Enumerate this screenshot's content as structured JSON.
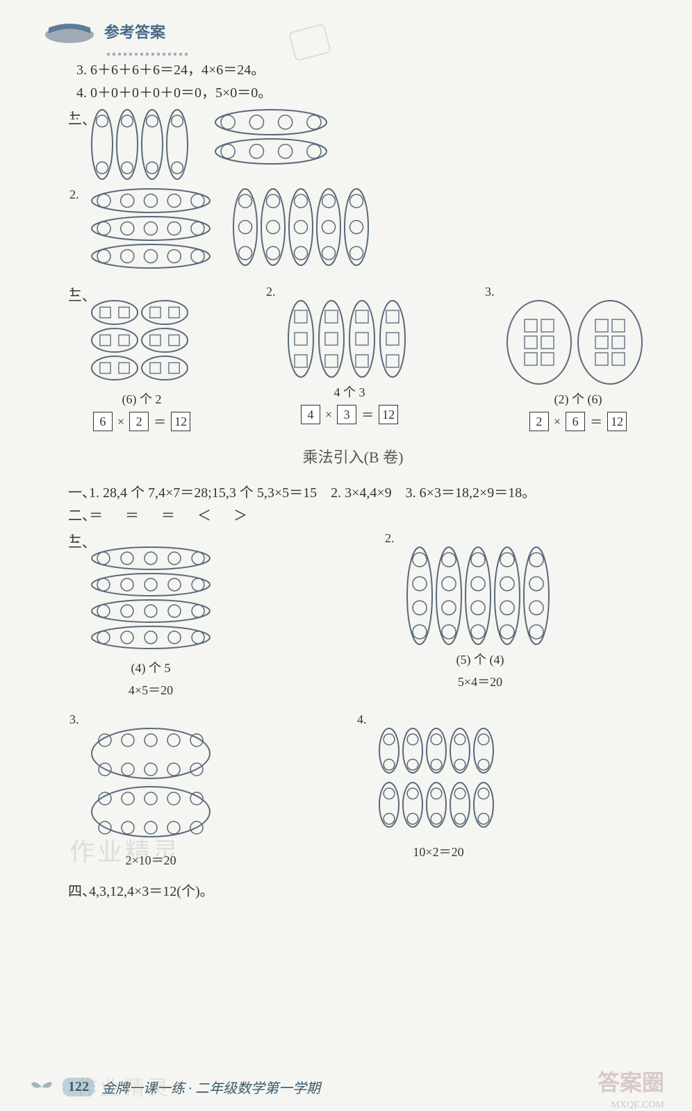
{
  "header": {
    "title": "参考答案"
  },
  "top_lines": {
    "l3": "3. 6＋6＋6＋6＝24，4×6＝24。",
    "l4": "4. 0＋0＋0＋0＋0＝0，5×0＝0。"
  },
  "sec2": {
    "label": "二、",
    "p1": "1.",
    "p2": "2."
  },
  "sec2_figs": {
    "fig1a": {
      "type": "v-ovals",
      "count": 4,
      "dots": 2,
      "ovalW": 30,
      "ovalH": 100,
      "color": "#5a6a7a"
    },
    "fig1b": {
      "type": "h-ovals",
      "count": 2,
      "dots": 4,
      "ovalW": 160,
      "ovalH": 36,
      "color": "#5a6a7a"
    },
    "fig2a": {
      "type": "h-ovals",
      "count": 3,
      "dots": 5,
      "ovalW": 170,
      "ovalH": 34,
      "color": "#5a6a7a"
    },
    "fig2b": {
      "type": "v-ovals",
      "count": 5,
      "dots": 3,
      "ovalW": 34,
      "ovalH": 110,
      "color": "#5a6a7a"
    }
  },
  "sec3": {
    "label": "三、",
    "problems": [
      {
        "num": "1.",
        "fig": {
          "type": "grid-ovals",
          "rows": 3,
          "cols": 2,
          "squares": 2,
          "ovalW": 66,
          "ovalH": 34
        },
        "cap": "(6) 个 2",
        "eq": {
          "a": "6",
          "op": "×",
          "b": "2",
          "eq": "＝",
          "c": "12"
        }
      },
      {
        "num": "2.",
        "fig": {
          "type": "v-ovals-sq",
          "count": 4,
          "squares": 3,
          "ovalW": 36,
          "ovalH": 110
        },
        "cap": "4 个 3",
        "eq": {
          "a": "4",
          "op": "×",
          "b": "3",
          "eq": "＝",
          "c": "12"
        }
      },
      {
        "num": "3.",
        "fig": {
          "type": "big-ovals-sq",
          "count": 2,
          "rows": 3,
          "cols": 2,
          "ovalW": 92,
          "ovalH": 120
        },
        "cap": "(2) 个 (6)",
        "eq": {
          "a": "2",
          "op": "×",
          "b": "6",
          "eq": "＝",
          "c": "12"
        }
      }
    ]
  },
  "subtitle": "乘法引入(B 卷)",
  "secB1": {
    "label": "一、",
    "text": "1. 28,4 个 7,4×7＝28;15,3 个 5,3×5＝15　2. 3×4,4×9　3. 6×3＝18,2×9＝18。"
  },
  "secB2": {
    "label": "二、",
    "text": "＝　＝　＝　＜　＞"
  },
  "secB3": {
    "label": "三、",
    "problems": [
      {
        "num": "1.",
        "fig": {
          "type": "h-ovals",
          "count": 4,
          "dots": 5,
          "ovalW": 170,
          "ovalH": 32,
          "color": "#5a6a7a"
        },
        "cap1": "(4) 个 5",
        "cap2": "4×5＝20"
      },
      {
        "num": "2.",
        "fig": {
          "type": "v-ovals",
          "count": 5,
          "dots": 4,
          "ovalW": 36,
          "ovalH": 140,
          "color": "#5a6a7a"
        },
        "cap1": "(5) 个 (4)",
        "cap2": "5×4＝20"
      },
      {
        "num": "3.",
        "fig": {
          "type": "big-h-ovals",
          "count": 2,
          "rows": 2,
          "cols": 5,
          "ovalW": 170,
          "ovalH": 72,
          "color": "#5a6a7a"
        },
        "cap1": "2×10＝20"
      },
      {
        "num": "4.",
        "fig": {
          "type": "small-v-ovals-rows",
          "rows": 2,
          "cols": 5,
          "dots": 2,
          "ovalW": 28,
          "ovalH": 64,
          "color": "#5a6a7a"
        },
        "cap1": "10×2＝20"
      }
    ]
  },
  "secB4": {
    "label": "四、",
    "text": "4,3,12,4×3＝12(个)。"
  },
  "footer": {
    "page": "122",
    "text": "金牌一课一练 · 二年级数学第一学期"
  },
  "watermarks": {
    "w1": "作业精灵",
    "w2": "答案圈",
    "w3": "MXQE.COM",
    "w4": "作业精灵"
  },
  "colors": {
    "stroke": "#5a6a7a",
    "square": "#6a7a8a",
    "bg": "#f5f5f2"
  }
}
